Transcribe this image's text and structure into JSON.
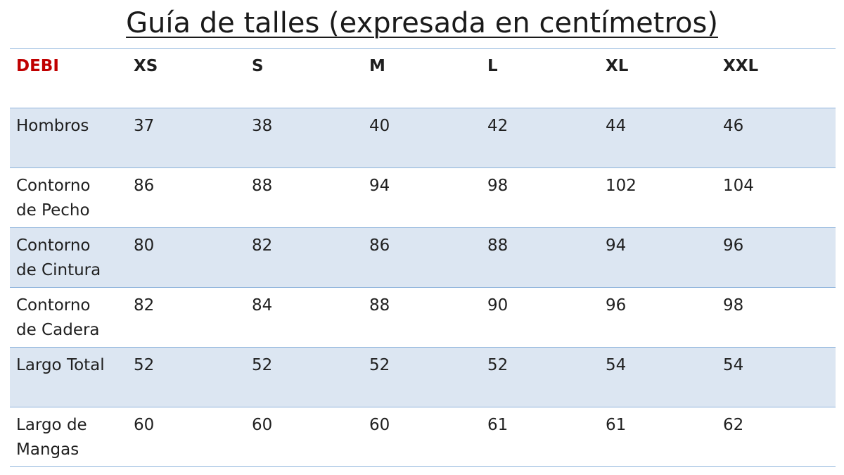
{
  "title": "Guía de talles (expresada en centímetros)",
  "brand": "DEBI",
  "colors": {
    "brand": "#c00000",
    "shade": "#dce6f2",
    "rule": "#8fb4dc"
  },
  "sizes": [
    "XS",
    "S",
    "M",
    "L",
    "XL",
    "XXL"
  ],
  "rows": [
    {
      "label": "Hombros",
      "values": [
        "37",
        "38",
        "40",
        "42",
        "44",
        "46"
      ]
    },
    {
      "label": "Contorno\nde Pecho",
      "values": [
        "86",
        "88",
        "94",
        "98",
        "102",
        "104"
      ]
    },
    {
      "label": "Contorno\nde Cintura",
      "values": [
        "80",
        "82",
        "86",
        "88",
        "94",
        "96"
      ]
    },
    {
      "label": "Contorno\nde Cadera",
      "values": [
        "82",
        "84",
        "88",
        "90",
        "96",
        "98"
      ]
    },
    {
      "label": "Largo Total",
      "values": [
        "52",
        "52",
        "52",
        "52",
        "54",
        "54"
      ]
    },
    {
      "label": "Largo de\nMangas",
      "values": [
        "60",
        "60",
        "60",
        "61",
        "61",
        "62"
      ]
    }
  ]
}
